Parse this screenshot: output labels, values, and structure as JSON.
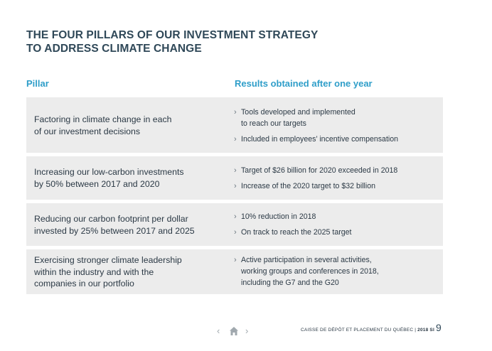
{
  "title": {
    "line1": "THE FOUR PILLARS OF OUR INVESTMENT STRATEGY",
    "line2": "TO ADDRESS CLIMATE CHANGE"
  },
  "table": {
    "headers": {
      "pillar": "Pillar",
      "results": "Results obtained after one year"
    },
    "rows": [
      {
        "pillar": [
          "Factoring in climate change in each",
          "of our investment decisions"
        ],
        "results": [
          [
            "Tools developed and implemented",
            "to reach our targets"
          ],
          [
            "Included in employees’ incentive compensation"
          ]
        ]
      },
      {
        "pillar": [
          "Increasing our low-carbon investments",
          "by 50% between 2017 and 2020"
        ],
        "results": [
          [
            "Target of $26 billion for 2020 exceeded in 2018"
          ],
          [
            "Increase of the 2020 target to $32 billion"
          ]
        ]
      },
      {
        "pillar": [
          "Reducing our carbon footprint per dollar",
          "invested by 25% between 2017 and 2025"
        ],
        "results": [
          [
            "10% reduction in 2018"
          ],
          [
            "On track to reach the 2025 target"
          ]
        ]
      },
      {
        "pillar": [
          "Exercising stronger climate leadership",
          "within the industry and with the",
          "companies in our portfolio"
        ],
        "results": [
          [
            "Active participation in several activities,",
            "working groups and conferences in 2018,",
            "including the G7 and the G20"
          ]
        ]
      }
    ]
  },
  "bullet_glyph": "›",
  "footer": {
    "prev": "‹",
    "next": "›",
    "home_icon": "home-icon",
    "org": "CAISSE DE DÉPÔT ET PLACEMENT DU QUÉBEC",
    "separator": " | ",
    "report": "2018 SI",
    "page": "9"
  },
  "colors": {
    "title": "#2f4858",
    "header_accent": "#2f9ec9",
    "row_bg": "#ececec"
  }
}
